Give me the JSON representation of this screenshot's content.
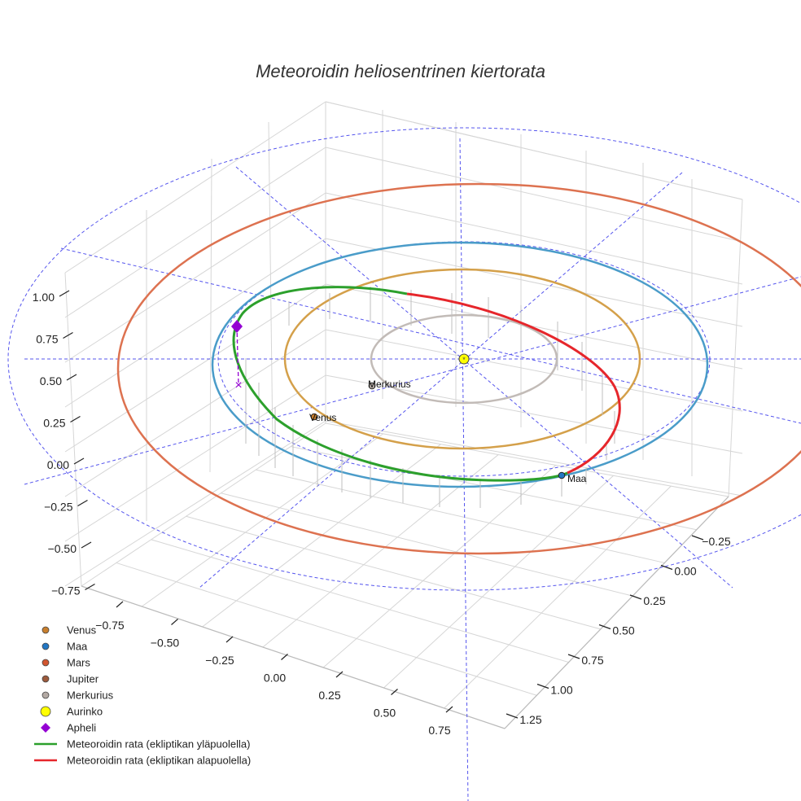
{
  "chart_data": {
    "type": "line3d",
    "title": "Meteoroidin heliosentrinen kiertorata",
    "axes": {
      "x_ticks": [
        "−0.75",
        "−0.50",
        "−0.25",
        "0.00",
        "0.25",
        "0.50",
        "0.75"
      ],
      "y_ticks": [
        "−0.25",
        "0.00",
        "0.25",
        "0.50",
        "0.75",
        "1.00",
        "1.25"
      ],
      "z_ticks": [
        "1.00",
        "0.75",
        "0.50",
        "0.25",
        "0.00",
        "−0.25",
        "−0.50",
        "−0.75"
      ],
      "grid": true
    },
    "planet_labels": [
      "Merkurius",
      "Venus",
      "Maa"
    ],
    "legend": {
      "position": "bottom-left",
      "entries": [
        {
          "name": "Venus",
          "marker": "circle",
          "color": "#c87f2e"
        },
        {
          "name": "Maa",
          "marker": "circle",
          "color": "#2277c4"
        },
        {
          "name": "Mars",
          "marker": "circle",
          "color": "#d2562f"
        },
        {
          "name": "Jupiter",
          "marker": "circle",
          "color": "#9c5a3c"
        },
        {
          "name": "Merkurius",
          "marker": "circle",
          "color": "#b3a9a3"
        },
        {
          "name": "Aurinko",
          "marker": "circle",
          "color": "#ffff00"
        },
        {
          "name": "Apheli",
          "marker": "diamond",
          "color": "#9400d3"
        },
        {
          "name": "Meteoroidin rata (ekliptikan yläpuolella)",
          "marker": "line",
          "color": "#2ca02c"
        },
        {
          "name": "Meteoroidin rata (ekliptikan alapuolella)",
          "marker": "line",
          "color": "#e6262b"
        }
      ]
    },
    "orbit_colors": {
      "merkurius": "#c2bbb7",
      "venus": "#d4a04a",
      "maa": "#4a9cc9",
      "mars": "#dd7250",
      "guide": "#5555ee"
    }
  }
}
